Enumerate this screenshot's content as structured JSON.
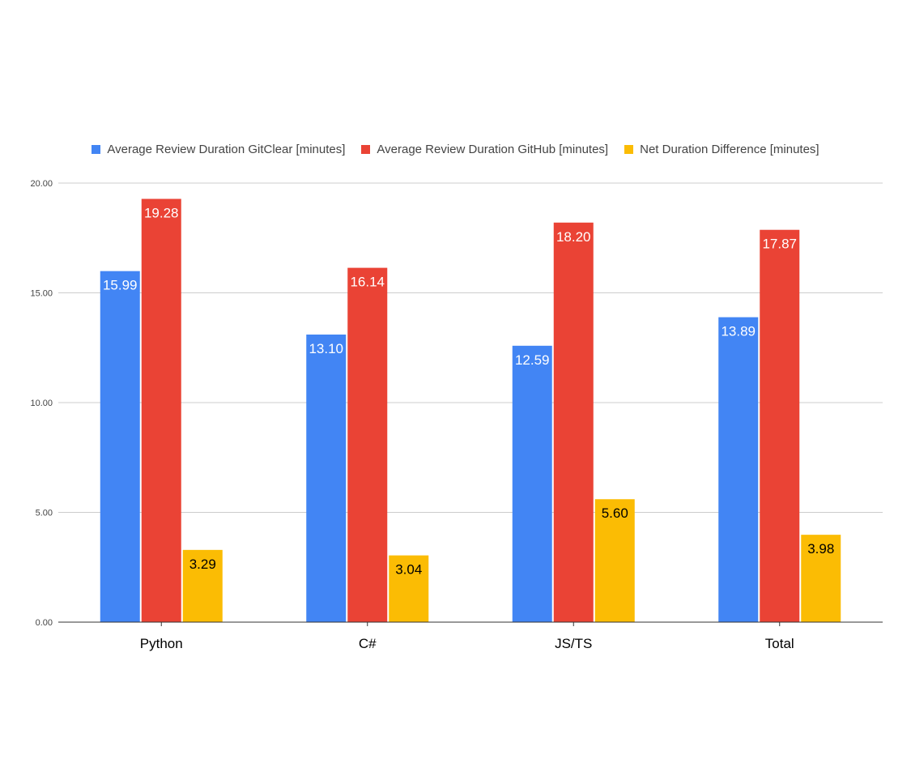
{
  "chart_data": {
    "type": "bar",
    "title": "",
    "xlabel": "",
    "ylabel": "",
    "categories": [
      "Python",
      "C#",
      "JS/TS",
      "Total"
    ],
    "series": [
      {
        "name": "Average Review Duration GitClear [minutes]",
        "color": "#4285F4",
        "label_color": "#ffffff",
        "values": [
          15.99,
          13.1,
          12.59,
          13.89
        ]
      },
      {
        "name": "Average Review Duration GitHub [minutes]",
        "color": "#EA4335",
        "label_color": "#ffffff",
        "values": [
          19.28,
          16.14,
          18.2,
          17.87
        ]
      },
      {
        "name": "Net Duration Difference [minutes]",
        "color": "#FBBC04",
        "label_color": "#000000",
        "values": [
          3.29,
          3.04,
          5.6,
          3.98
        ]
      }
    ],
    "value_labels": [
      [
        "15.99",
        "13.10",
        "12.59",
        "13.89"
      ],
      [
        "19.28",
        "16.14",
        "18.20",
        "17.87"
      ],
      [
        "3.29",
        "3.04",
        "5.60",
        "3.98"
      ]
    ],
    "ylim": [
      0,
      20
    ],
    "yticks": [
      0,
      5,
      10,
      15,
      20
    ],
    "ytick_labels": [
      "0.00",
      "5.00",
      "10.00",
      "15.00",
      "20.00"
    ],
    "grid": true,
    "legend_position": "top"
  }
}
